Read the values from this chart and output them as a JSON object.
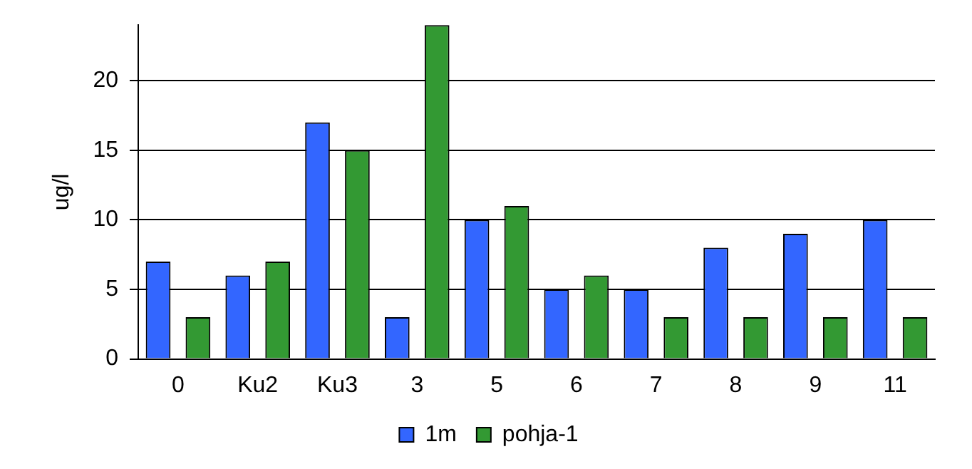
{
  "chart_data": {
    "type": "bar",
    "ylabel": "ug/l",
    "categories": [
      "0",
      "Ku2",
      "Ku3",
      "3",
      "5",
      "6",
      "7",
      "8",
      "9",
      "11"
    ],
    "series": [
      {
        "name": "1m",
        "color": "#3366ff",
        "values": [
          7,
          6,
          17,
          3,
          10,
          5,
          5,
          8,
          9,
          10
        ]
      },
      {
        "name": "pohja-1",
        "color": "#339933",
        "values": [
          3,
          7,
          15,
          24,
          11,
          6,
          3,
          3,
          3,
          3
        ]
      }
    ],
    "ylim": [
      0,
      24
    ],
    "yticks": [
      0,
      5,
      10,
      15,
      20
    ],
    "grid": "y",
    "legend": "bottom"
  }
}
